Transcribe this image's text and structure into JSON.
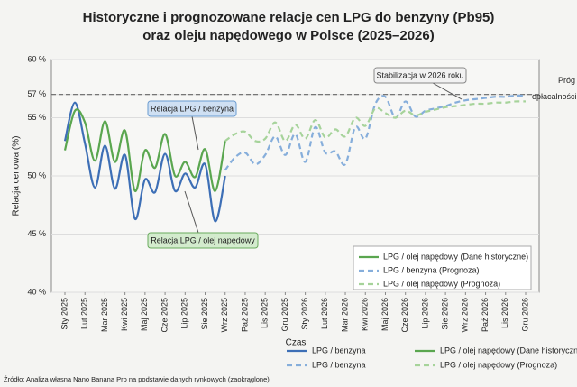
{
  "chart_data": {
    "type": "line",
    "title": [
      "Historyczne i prognozowane relacje cen LPG do benzyny (Pb95)",
      "oraz oleju napędowego w Polsce (2025–2026)"
    ],
    "y_label": "Relacja cenowa (%)",
    "x_label": "Czas",
    "source": "Źródło: Analiza własna Nano Banana Pro na podstawie danych rynkowych (zaokrąglone)",
    "categories": [
      "Sty 2025",
      null,
      "Lut 2025",
      null,
      "Mar 2025",
      null,
      "Kwi 2025",
      null,
      "Maj 2025",
      null,
      "Cze 2025",
      null,
      "Lip 2025",
      null,
      "Sie 2025",
      null,
      "Wrz 2025",
      null,
      "Paź 2025",
      null,
      "Lis 2025",
      null,
      "Gru 2025",
      null,
      "Sty 2026",
      null,
      "Lut 2026",
      null,
      "Mar 2026",
      null,
      "Kwi 2026",
      null,
      "Maj 2026",
      null,
      "Cze 2026",
      null,
      "Lip 2026",
      null,
      "Sie 2026",
      null,
      "Wrz 2026",
      null,
      "Paź 2026",
      null,
      "Lis 2026",
      null,
      "Gru 2026"
    ],
    "ylim": [
      40,
      60
    ],
    "yticks": [
      {
        "value": 40,
        "label": "40 %"
      },
      {
        "value": 45,
        "label": "45 %"
      },
      {
        "value": 50,
        "label": "50 %"
      },
      {
        "value": 55,
        "label": "55 %"
      },
      {
        "value": 57,
        "label": "57 %"
      },
      {
        "value": 60,
        "label": "60 %"
      }
    ],
    "grid": true,
    "legend": "lower right",
    "threshold": {
      "value": 57,
      "label": "Próg opłacalności"
    },
    "annotations": [
      {
        "text": "Stabilizacja w 2026 roku"
      },
      {
        "text": "Relacja LPG / benzyna"
      },
      {
        "text": "Relacja LPG / olej napędowy"
      }
    ],
    "series": [
      {
        "name": "LPG / benzyna",
        "color": "#3d6fb6",
        "style": "solid",
        "values": [
          53.0,
          56.3,
          52.8,
          49.0,
          52.6,
          48.9,
          51.8,
          46.3,
          49.7,
          48.6,
          51.9,
          48.7,
          50.2,
          49.0,
          51.0,
          46.1,
          50.0,
          null,
          null,
          null,
          null,
          null,
          null,
          null,
          null,
          null,
          null,
          null,
          null,
          null,
          null,
          null,
          null,
          null,
          null,
          null,
          null,
          null,
          null,
          null,
          null,
          null,
          null,
          null,
          null,
          null,
          null
        ]
      },
      {
        "name": "LPG / olej napędowy (Dane historyczne)",
        "color": "#5aa64f",
        "style": "solid",
        "values": [
          52.2,
          55.6,
          54.6,
          51.3,
          54.7,
          51.2,
          53.9,
          48.7,
          52.2,
          50.7,
          53.6,
          50.0,
          51.2,
          49.9,
          52.3,
          48.7,
          53.0,
          null,
          null,
          null,
          null,
          null,
          null,
          null,
          null,
          null,
          null,
          null,
          null,
          null,
          null,
          null,
          null,
          null,
          null,
          null,
          null,
          null,
          null,
          null,
          null,
          null,
          null,
          null,
          null,
          null,
          null
        ]
      },
      {
        "name": "LPG / benzyna (Prognoza)",
        "color": "#86aedb",
        "style": "dashed",
        "values": [
          null,
          null,
          null,
          null,
          null,
          null,
          null,
          null,
          null,
          null,
          null,
          null,
          null,
          null,
          null,
          null,
          50.5,
          51.6,
          52.0,
          51.0,
          51.8,
          53.4,
          51.8,
          53.6,
          51.2,
          54.2,
          52.0,
          52.1,
          51.0,
          54.2,
          53.2,
          56.2,
          56.8,
          55.0,
          56.4,
          55.1,
          55.6,
          55.8,
          56.0,
          56.3,
          56.5,
          56.6,
          56.7,
          56.8,
          56.8,
          56.9,
          56.9
        ]
      },
      {
        "name": "LPG / olej napędowy (Prognoza)",
        "color": "#a6d39a",
        "style": "dashed",
        "values": [
          null,
          null,
          null,
          null,
          null,
          null,
          null,
          null,
          null,
          null,
          null,
          null,
          null,
          null,
          null,
          null,
          53.0,
          53.6,
          53.8,
          53.0,
          53.2,
          54.6,
          53.0,
          54.4,
          53.2,
          54.8,
          53.3,
          54.0,
          53.4,
          55.0,
          54.3,
          55.8,
          55.4,
          55.0,
          55.6,
          55.2,
          55.5,
          55.7,
          55.9,
          56.0,
          56.1,
          56.2,
          56.2,
          56.3,
          56.3,
          56.4,
          56.4
        ]
      }
    ]
  }
}
